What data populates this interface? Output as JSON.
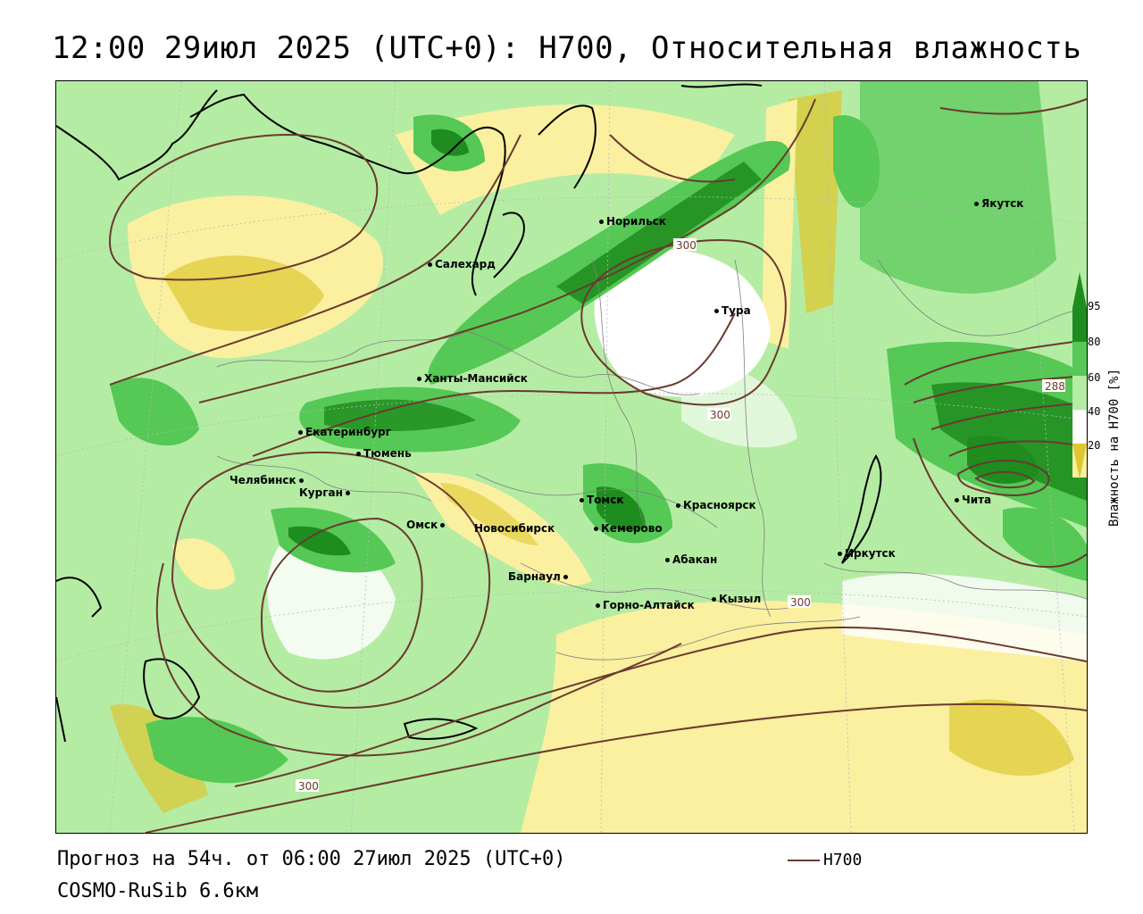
{
  "title": "12:00 29июл 2025 (UTC+0): H700, Относительная влажность",
  "footer": {
    "forecast": "Прогноз на 54ч. от 06:00 27июл 2025 (UTC+0)",
    "model": "COSMO-RuSib 6.6км",
    "line_legend_label": "H700"
  },
  "legend": {
    "title": "Влажность на H700 [%]",
    "ticks": [
      "95",
      "80",
      "60",
      "40",
      "20"
    ],
    "colors": {
      "very_wet": "#1e8c1e",
      "wet": "#55c855",
      "moist": "#b4eca4",
      "neutral": "#ffffff",
      "dry": "#faf0a0",
      "very_dry": "#ddc832"
    }
  },
  "contour_labels": [
    "300",
    "300",
    "300",
    "300",
    "288"
  ],
  "cities": [
    {
      "name": "Салехард"
    },
    {
      "name": "Норильск"
    },
    {
      "name": "Тура"
    },
    {
      "name": "Якутск"
    },
    {
      "name": "Ханты-Мансийск"
    },
    {
      "name": "Екатеринбург"
    },
    {
      "name": "Тюмень"
    },
    {
      "name": "Челябинск"
    },
    {
      "name": "Курган"
    },
    {
      "name": "Омск"
    },
    {
      "name": "Новосибирск"
    },
    {
      "name": "Томск"
    },
    {
      "name": "Кемерово"
    },
    {
      "name": "Красноярск"
    },
    {
      "name": "Абакан"
    },
    {
      "name": "Барнаул"
    },
    {
      "name": "Горно-Алтайск"
    },
    {
      "name": "Кызыл"
    },
    {
      "name": "Иркутск"
    },
    {
      "name": "Чита"
    }
  ]
}
